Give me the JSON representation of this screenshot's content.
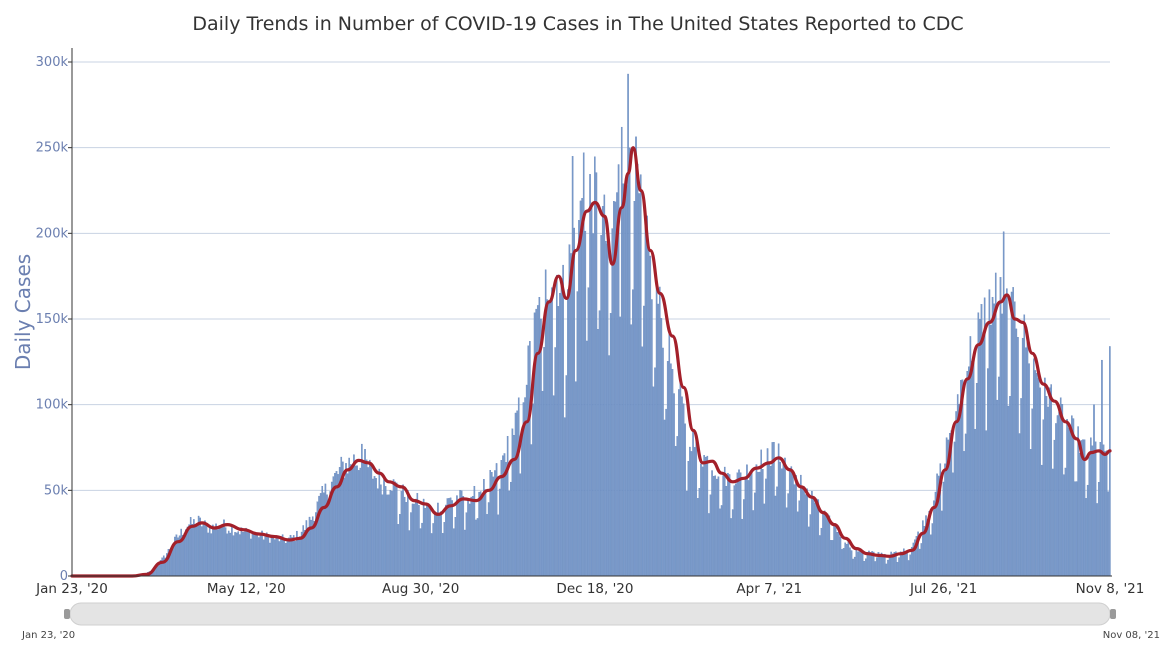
{
  "chart_data": {
    "type": "bar",
    "title": "Daily Trends in Number of COVID-19 Cases in The United States Reported to CDC",
    "ylabel": "Daily Cases",
    "xlabel": "",
    "x_range": [
      "2020-01-23",
      "2021-11-08"
    ],
    "ylim": [
      0,
      300000
    ],
    "yticks": [
      {
        "value": 0,
        "label": "0"
      },
      {
        "value": 50000,
        "label": "50k"
      },
      {
        "value": 100000,
        "label": "100k"
      },
      {
        "value": 150000,
        "label": "150k"
      },
      {
        "value": 200000,
        "label": "200k"
      },
      {
        "value": 250000,
        "label": "250k"
      },
      {
        "value": 300000,
        "label": "300k"
      }
    ],
    "xticks": [
      {
        "date": "2020-01-23",
        "label": "Jan 23, '20"
      },
      {
        "date": "2020-05-12",
        "label": "May 12, '20"
      },
      {
        "date": "2020-08-30",
        "label": "Aug 30, '20"
      },
      {
        "date": "2020-12-18",
        "label": "Dec 18, '20"
      },
      {
        "date": "2021-04-07",
        "label": "Apr 7, '21"
      },
      {
        "date": "2021-07-26",
        "label": "Jul 26, '21"
      },
      {
        "date": "2021-11-08",
        "label": "Nov 8, '21"
      }
    ],
    "grid": true,
    "colors": {
      "bars": "#7b9bcb",
      "bar_edge": "#5d80b8",
      "average_line": "#a3202a",
      "grid": "#c8d3e3",
      "axis_text": "#6b7fb0"
    },
    "series": [
      {
        "kind": "bars",
        "points": [
          [
            "2020-01-23",
            0
          ],
          [
            "2020-03-01",
            0
          ],
          [
            "2020-03-08",
            500
          ],
          [
            "2020-03-15",
            4000
          ],
          [
            "2020-03-22",
            12000
          ],
          [
            "2020-03-29",
            22000
          ],
          [
            "2020-04-05",
            30000
          ],
          [
            "2020-04-12",
            32000
          ],
          [
            "2020-04-19",
            28000
          ],
          [
            "2020-04-26",
            30000
          ],
          [
            "2020-05-03",
            28000
          ],
          [
            "2020-05-10",
            26000
          ],
          [
            "2020-05-17",
            25000
          ],
          [
            "2020-05-24",
            23000
          ],
          [
            "2020-05-31",
            22000
          ],
          [
            "2020-06-07",
            21000
          ],
          [
            "2020-06-14",
            24000
          ],
          [
            "2020-06-21",
            32000
          ],
          [
            "2020-06-28",
            45000
          ],
          [
            "2020-07-05",
            55000
          ],
          [
            "2020-07-12",
            64000
          ],
          [
            "2020-07-19",
            68000
          ],
          [
            "2020-07-26",
            66000
          ],
          [
            "2020-08-02",
            58000
          ],
          [
            "2020-08-09",
            54000
          ],
          [
            "2020-08-16",
            50000
          ],
          [
            "2020-08-23",
            44000
          ],
          [
            "2020-08-30",
            42000
          ],
          [
            "2020-09-06",
            38000
          ],
          [
            "2020-09-13",
            40000
          ],
          [
            "2020-09-20",
            45000
          ],
          [
            "2020-09-27",
            44000
          ],
          [
            "2020-10-04",
            47000
          ],
          [
            "2020-10-11",
            52000
          ],
          [
            "2020-10-18",
            60000
          ],
          [
            "2020-10-25",
            75000
          ],
          [
            "2020-11-01",
            95000
          ],
          [
            "2020-11-08",
            130000
          ],
          [
            "2020-11-15",
            160000
          ],
          [
            "2020-11-22",
            175000
          ],
          [
            "2020-11-29",
            160000
          ],
          [
            "2020-12-06",
            200000
          ],
          [
            "2020-12-13",
            215000
          ],
          [
            "2020-12-20",
            215000
          ],
          [
            "2020-12-27",
            185000
          ],
          [
            "2021-01-03",
            230000
          ],
          [
            "2021-01-10",
            245000
          ],
          [
            "2021-01-17",
            200000
          ],
          [
            "2021-01-24",
            165000
          ],
          [
            "2021-01-31",
            140000
          ],
          [
            "2021-02-07",
            110000
          ],
          [
            "2021-02-14",
            85000
          ],
          [
            "2021-02-21",
            70000
          ],
          [
            "2021-02-28",
            65000
          ],
          [
            "2021-03-07",
            58000
          ],
          [
            "2021-03-14",
            55000
          ],
          [
            "2021-03-21",
            57000
          ],
          [
            "2021-03-28",
            63000
          ],
          [
            "2021-04-04",
            67000
          ],
          [
            "2021-04-11",
            70000
          ],
          [
            "2021-04-18",
            64000
          ],
          [
            "2021-04-25",
            55000
          ],
          [
            "2021-05-02",
            48000
          ],
          [
            "2021-05-09",
            38000
          ],
          [
            "2021-05-16",
            30000
          ],
          [
            "2021-05-23",
            23000
          ],
          [
            "2021-05-30",
            15000
          ],
          [
            "2021-06-06",
            14000
          ],
          [
            "2021-06-13",
            13000
          ],
          [
            "2021-06-20",
            12000
          ],
          [
            "2021-06-27",
            13000
          ],
          [
            "2021-07-04",
            15000
          ],
          [
            "2021-07-11",
            25000
          ],
          [
            "2021-07-18",
            40000
          ],
          [
            "2021-07-25",
            62000
          ],
          [
            "2021-08-01",
            90000
          ],
          [
            "2021-08-08",
            115000
          ],
          [
            "2021-08-15",
            135000
          ],
          [
            "2021-08-22",
            150000
          ],
          [
            "2021-08-29",
            160000
          ],
          [
            "2021-09-05",
            150000
          ],
          [
            "2021-09-12",
            145000
          ],
          [
            "2021-09-19",
            125000
          ],
          [
            "2021-09-26",
            110000
          ],
          [
            "2021-10-03",
            100000
          ],
          [
            "2021-10-10",
            88000
          ],
          [
            "2021-10-17",
            80000
          ],
          [
            "2021-10-24",
            70000
          ],
          [
            "2021-10-31",
            73000
          ],
          [
            "2021-11-07",
            72000
          ]
        ]
      },
      {
        "kind": "line",
        "points": [
          [
            "2020-01-23",
            0
          ],
          [
            "2020-03-01",
            0
          ],
          [
            "2020-03-10",
            1000
          ],
          [
            "2020-03-20",
            8000
          ],
          [
            "2020-03-30",
            20000
          ],
          [
            "2020-04-08",
            29000
          ],
          [
            "2020-04-14",
            31000
          ],
          [
            "2020-04-22",
            28000
          ],
          [
            "2020-04-30",
            30000
          ],
          [
            "2020-05-10",
            27000
          ],
          [
            "2020-05-20",
            24500
          ],
          [
            "2020-05-30",
            23000
          ],
          [
            "2020-06-08",
            21000
          ],
          [
            "2020-06-15",
            22000
          ],
          [
            "2020-06-22",
            28000
          ],
          [
            "2020-06-30",
            40000
          ],
          [
            "2020-07-08",
            52000
          ],
          [
            "2020-07-15",
            62000
          ],
          [
            "2020-07-22",
            67500
          ],
          [
            "2020-07-28",
            66000
          ],
          [
            "2020-08-04",
            60000
          ],
          [
            "2020-08-10",
            55000
          ],
          [
            "2020-08-18",
            52000
          ],
          [
            "2020-08-26",
            44000
          ],
          [
            "2020-09-02",
            42000
          ],
          [
            "2020-09-10",
            36000
          ],
          [
            "2020-09-18",
            41000
          ],
          [
            "2020-09-26",
            45000
          ],
          [
            "2020-10-04",
            44000
          ],
          [
            "2020-10-12",
            50000
          ],
          [
            "2020-10-20",
            58000
          ],
          [
            "2020-10-28",
            68000
          ],
          [
            "2020-11-05",
            90000
          ],
          [
            "2020-11-12",
            130000
          ],
          [
            "2020-11-19",
            160000
          ],
          [
            "2020-11-25",
            175000
          ],
          [
            "2020-11-30",
            162000
          ],
          [
            "2020-12-06",
            190000
          ],
          [
            "2020-12-13",
            213000
          ],
          [
            "2020-12-18",
            218000
          ],
          [
            "2020-12-24",
            210000
          ],
          [
            "2020-12-29",
            182000
          ],
          [
            "2021-01-04",
            215000
          ],
          [
            "2021-01-08",
            235000
          ],
          [
            "2021-01-11",
            250000
          ],
          [
            "2021-01-16",
            225000
          ],
          [
            "2021-01-22",
            190000
          ],
          [
            "2021-01-28",
            165000
          ],
          [
            "2021-02-05",
            140000
          ],
          [
            "2021-02-12",
            110000
          ],
          [
            "2021-02-18",
            85000
          ],
          [
            "2021-02-24",
            66000
          ],
          [
            "2021-03-02",
            67000
          ],
          [
            "2021-03-08",
            60000
          ],
          [
            "2021-03-15",
            55000
          ],
          [
            "2021-03-22",
            57000
          ],
          [
            "2021-03-30",
            63000
          ],
          [
            "2021-04-07",
            66000
          ],
          [
            "2021-04-13",
            69000
          ],
          [
            "2021-04-20",
            62000
          ],
          [
            "2021-04-27",
            52000
          ],
          [
            "2021-05-04",
            46000
          ],
          [
            "2021-05-11",
            37000
          ],
          [
            "2021-05-18",
            30000
          ],
          [
            "2021-05-25",
            22000
          ],
          [
            "2021-06-01",
            16000
          ],
          [
            "2021-06-08",
            13000
          ],
          [
            "2021-06-15",
            12000
          ],
          [
            "2021-06-22",
            11500
          ],
          [
            "2021-06-29",
            13000
          ],
          [
            "2021-07-06",
            15000
          ],
          [
            "2021-07-13",
            25000
          ],
          [
            "2021-07-20",
            40000
          ],
          [
            "2021-07-27",
            62000
          ],
          [
            "2021-08-03",
            90000
          ],
          [
            "2021-08-10",
            115000
          ],
          [
            "2021-08-17",
            135000
          ],
          [
            "2021-08-24",
            148000
          ],
          [
            "2021-08-31",
            160000
          ],
          [
            "2021-09-04",
            164000
          ],
          [
            "2021-09-09",
            150000
          ],
          [
            "2021-09-14",
            148000
          ],
          [
            "2021-09-20",
            130000
          ],
          [
            "2021-09-27",
            112000
          ],
          [
            "2021-10-04",
            102000
          ],
          [
            "2021-10-11",
            90000
          ],
          [
            "2021-10-18",
            80000
          ],
          [
            "2021-10-23",
            68000
          ],
          [
            "2021-10-27",
            72000
          ],
          [
            "2021-11-01",
            73000
          ],
          [
            "2021-11-05",
            71000
          ],
          [
            "2021-11-08",
            73000
          ]
        ]
      }
    ],
    "spikes": [
      [
        "2021-01-08",
        293000
      ],
      [
        "2021-01-04",
        262000
      ],
      [
        "2020-12-11",
        247000
      ],
      [
        "2020-12-04",
        245000
      ],
      [
        "2021-09-02",
        201000
      ],
      [
        "2020-07-24",
        77000
      ],
      [
        "2021-04-09",
        78000
      ],
      [
        "2021-11-03",
        126000
      ],
      [
        "2021-11-08",
        134000
      ],
      [
        "2021-10-29",
        100000
      ]
    ],
    "navigator": {
      "start_label": "Jan 23, '20",
      "end_label": "Nov 08, '21"
    }
  }
}
